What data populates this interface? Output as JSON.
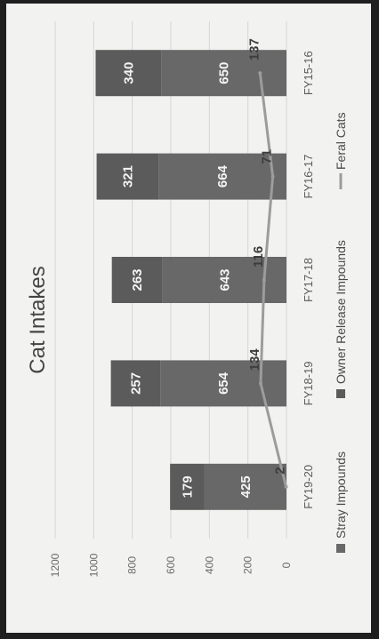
{
  "chart_data": {
    "type": "bar",
    "title": "Cat Intakes",
    "categories": [
      "FY19-20",
      "FY18-19",
      "FY17-18",
      "FY16-17",
      "FY15-16"
    ],
    "series": [
      {
        "name": "Stray Impounds",
        "type": "bar",
        "stack": "intakes",
        "values": [
          425,
          654,
          643,
          664,
          650
        ],
        "color": "#686868"
      },
      {
        "name": "Owner Release Impounds",
        "type": "bar",
        "stack": "intakes",
        "values": [
          179,
          257,
          263,
          321,
          340
        ],
        "color": "#5b5b5b"
      },
      {
        "name": "Feral Cats",
        "type": "line",
        "values": [
          2,
          134,
          116,
          71,
          137
        ],
        "color": "#9c9c9c"
      }
    ],
    "value_axis": {
      "ticks": [
        0,
        200,
        400,
        600,
        800,
        1000,
        1200
      ],
      "range": [
        0,
        1200
      ]
    },
    "grid": true,
    "legend_position": "bottom",
    "orientation": "image rotated 90 degrees clockwise"
  }
}
